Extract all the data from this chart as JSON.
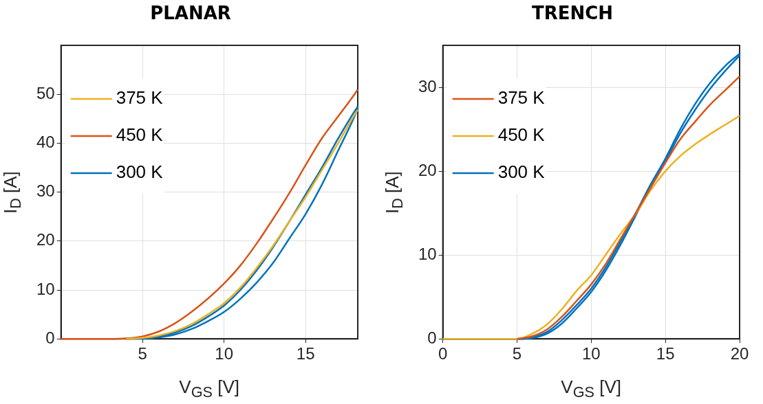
{
  "chart_data": [
    {
      "type": "line",
      "title": "PLANAR",
      "xlabel": "V$_{GS}$ [V]",
      "ylabel": "I$_{D}$ [A]",
      "xlim": [
        0,
        18.2
      ],
      "xticks": [
        5,
        10,
        15
      ],
      "ylim": [
        0,
        60
      ],
      "yticks": [
        0,
        10,
        20,
        30,
        40,
        50
      ],
      "grid": true,
      "legend": "top left",
      "marker": "none",
      "line_style": "solid",
      "x": [
        0,
        3,
        4,
        5,
        6,
        7,
        8,
        9,
        10,
        11,
        12,
        13,
        14,
        15,
        16,
        17,
        18,
        18.2
      ],
      "series": [
        {
          "name": "375 K",
          "color": "#edb120",
          "values": [
            null,
            null,
            0,
            0.2,
            0.7,
            1.6,
            3,
            5,
            7.3,
            10.5,
            14.5,
            19,
            24,
            29,
            34.5,
            40,
            45.8,
            46.8
          ]
        },
        {
          "name": "450 K",
          "color": "#d95319",
          "values": [
            0,
            0,
            0.1,
            0.5,
            1.5,
            3.2,
            5.5,
            8.2,
            11.3,
            15,
            19.5,
            24.5,
            29.8,
            35.5,
            41,
            45.5,
            50,
            51
          ]
        },
        {
          "name": "300 K",
          "color": "#0072bd",
          "values": [
            null,
            null,
            0,
            0.1,
            0.5,
            1.3,
            2.6,
            4.5,
            6.8,
            10,
            14,
            18.7,
            24,
            29.5,
            35,
            41,
            46.5,
            47.5
          ]
        },
        {
          "color": "#0072bd",
          "values": [
            null,
            null,
            null,
            0,
            0.3,
            0.9,
            2,
            3.6,
            5.5,
            8.2,
            11.5,
            15.5,
            20.5,
            25.5,
            31.5,
            38.5,
            45.5,
            47.2
          ]
        }
      ]
    },
    {
      "type": "line",
      "title": "TRENCH",
      "xlabel": "V$_{GS}$ [V]",
      "ylabel": "I$_{D}$ [A]",
      "xlim": [
        0,
        20
      ],
      "xticks": [
        0,
        5,
        10,
        15,
        20
      ],
      "ylim": [
        0,
        35
      ],
      "yticks": [
        0,
        10,
        20,
        30
      ],
      "grid": true,
      "legend": "top left",
      "marker": "none",
      "line_style": "solid",
      "x": [
        0,
        5,
        6,
        7,
        8,
        9,
        10,
        11,
        12,
        13,
        14,
        15,
        16,
        17,
        18,
        19,
        20
      ],
      "series": [
        {
          "name": "375 K",
          "color": "#d95319",
          "values": [
            null,
            0,
            0.3,
            1.1,
            2.6,
            4.5,
            6.5,
            9,
            12,
            15,
            18,
            21,
            23.8,
            25.9,
            27.9,
            29.6,
            31.3
          ]
        },
        {
          "name": "450 K",
          "color": "#edb120",
          "values": [
            0,
            0,
            0.6,
            1.7,
            3.5,
            5.7,
            7.6,
            10.1,
            12.6,
            14.9,
            17.7,
            20,
            21.8,
            23.2,
            24.4,
            25.5,
            26.6
          ]
        },
        {
          "name": "300 K",
          "color": "#0072bd",
          "values": [
            0,
            0,
            0.2,
            0.8,
            2.2,
            4,
            6,
            8.6,
            11.7,
            15,
            18.4,
            21.5,
            25,
            28,
            30.5,
            32.5,
            34
          ]
        },
        {
          "color": "#0072bd",
          "values": [
            0,
            0,
            0.1,
            0.6,
            1.8,
            3.6,
            5.6,
            8.2,
            11.3,
            14.7,
            18.2,
            21.2,
            24.5,
            27.3,
            29.8,
            31.9,
            33.8
          ]
        }
      ]
    }
  ]
}
